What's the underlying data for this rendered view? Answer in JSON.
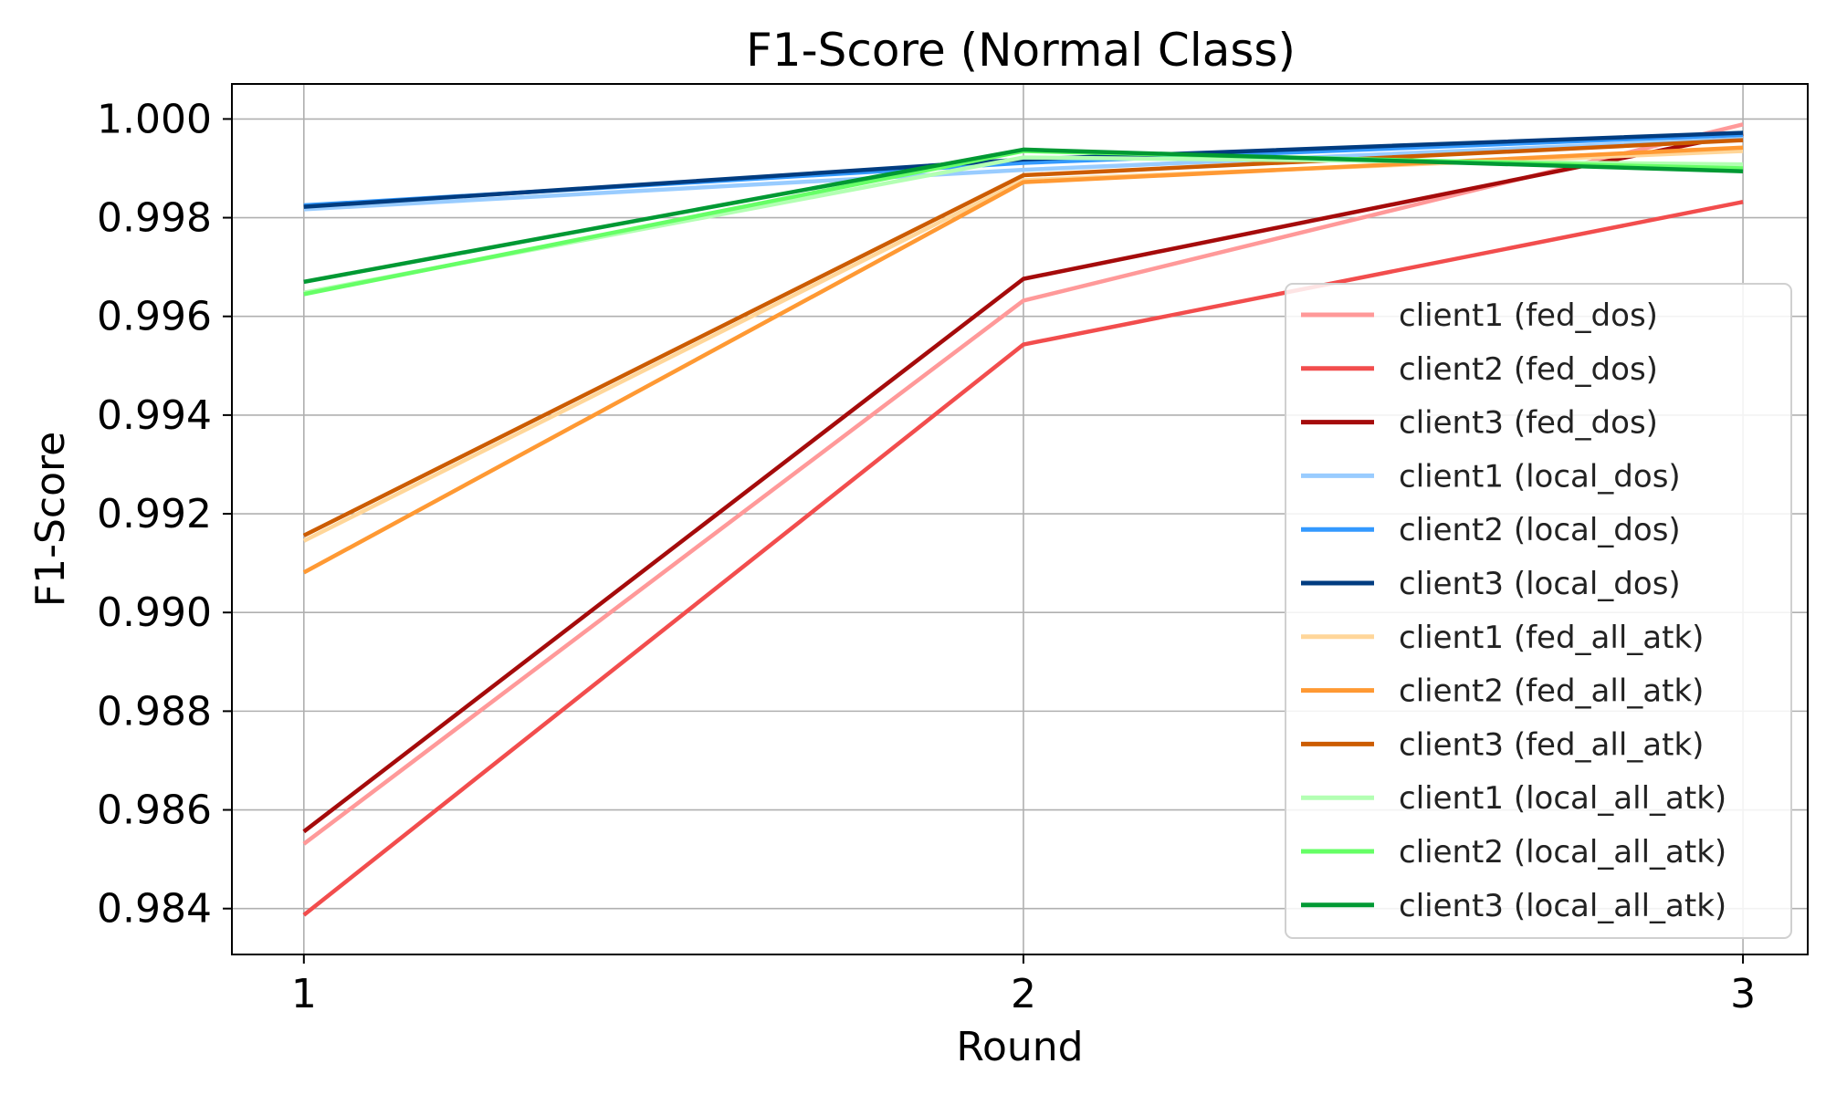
{
  "chart_data": {
    "type": "line",
    "title": "F1-Score (Normal Class)",
    "xlabel": "Round",
    "ylabel": "F1-Score",
    "x": [
      1,
      2,
      3
    ],
    "x_ticks": [
      "1",
      "2",
      "3"
    ],
    "xlim": [
      0.9,
      3.09
    ],
    "ylim": [
      0.98307,
      1.00071
    ],
    "y_ticks": [
      "0.984",
      "0.986",
      "0.988",
      "0.990",
      "0.992",
      "0.994",
      "0.996",
      "0.998",
      "1.000"
    ],
    "y_tick_values": [
      0.984,
      0.986,
      0.988,
      0.99,
      0.992,
      0.994,
      0.996,
      0.998,
      1.0
    ],
    "grid": true,
    "legend_position": "center-right",
    "series": [
      {
        "name": "client1 (fed_dos)",
        "color": "#ff9999",
        "values": [
          0.98531,
          0.99632,
          0.99989
        ]
      },
      {
        "name": "client2 (fed_dos)",
        "color": "#f24d4d",
        "values": [
          0.98387,
          0.99543,
          0.99832
        ]
      },
      {
        "name": "client3 (fed_dos)",
        "color": "#a50b0b",
        "values": [
          0.98556,
          0.99676,
          0.9997
        ]
      },
      {
        "name": "client1 (local_dos)",
        "color": "#99ccff",
        "values": [
          0.99817,
          0.99897,
          0.9996
        ]
      },
      {
        "name": "client2 (local_dos)",
        "color": "#3399ff",
        "values": [
          0.99825,
          0.99911,
          0.99968
        ]
      },
      {
        "name": "client3 (local_dos)",
        "color": "#003c80",
        "values": [
          0.99822,
          0.99918,
          0.99972
        ]
      },
      {
        "name": "client1 (fed_all_atk)",
        "color": "#ffd699",
        "values": [
          0.99145,
          0.99876,
          0.99935
        ]
      },
      {
        "name": "client2 (fed_all_atk)",
        "color": "#ff9933",
        "values": [
          0.99081,
          0.99872,
          0.99942
        ]
      },
      {
        "name": "client3 (fed_all_atk)",
        "color": "#cc5c00",
        "values": [
          0.99156,
          0.99886,
          0.99957
        ]
      },
      {
        "name": "client1 (local_all_atk)",
        "color": "#b3ffb3",
        "values": [
          0.99648,
          0.99922,
          0.99908
        ]
      },
      {
        "name": "client2 (local_all_atk)",
        "color": "#66ff66",
        "values": [
          0.99645,
          0.99935,
          0.999
        ]
      },
      {
        "name": "client3 (local_all_atk)",
        "color": "#009933",
        "values": [
          0.9967,
          0.99938,
          0.99894
        ]
      }
    ]
  }
}
